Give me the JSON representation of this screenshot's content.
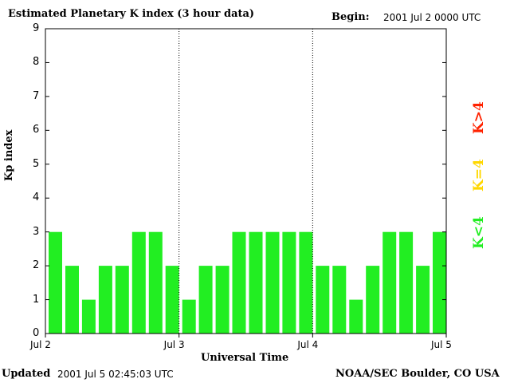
{
  "header": {
    "title": "Estimated Planetary K index (3 hour data)",
    "begin_label": "Begin:",
    "begin_value": "2001 Jul 2 0000 UTC"
  },
  "footer": {
    "updated_label": "Updated",
    "updated_value": "2001 Jul  5 02:45:03 UTC",
    "source": "NOAA/SEC Boulder, CO USA"
  },
  "legend": {
    "low": "K<4",
    "mid": "K=4",
    "high": "K>4",
    "colors": {
      "low": "#22ee22",
      "mid": "#ffd700",
      "high": "#ff2200"
    }
  },
  "chart_data": {
    "type": "bar",
    "title": "Estimated Planetary K index (3 hour data)",
    "xlabel": "Universal Time",
    "ylabel": "Kp index",
    "ylim": [
      0,
      9
    ],
    "yticks": [
      "0",
      "1",
      "2",
      "3",
      "4",
      "5",
      "6",
      "7",
      "8",
      "9"
    ],
    "xticks": [
      "Jul 2",
      "Jul 3",
      "Jul 4",
      "Jul 5"
    ],
    "bar_color": "#22ee22",
    "day_separators": true,
    "values": [
      3,
      2,
      1,
      2,
      2,
      3,
      3,
      2,
      1,
      2,
      2,
      3,
      3,
      3,
      3,
      3,
      2,
      2,
      1,
      2,
      3,
      3,
      2,
      3
    ]
  }
}
